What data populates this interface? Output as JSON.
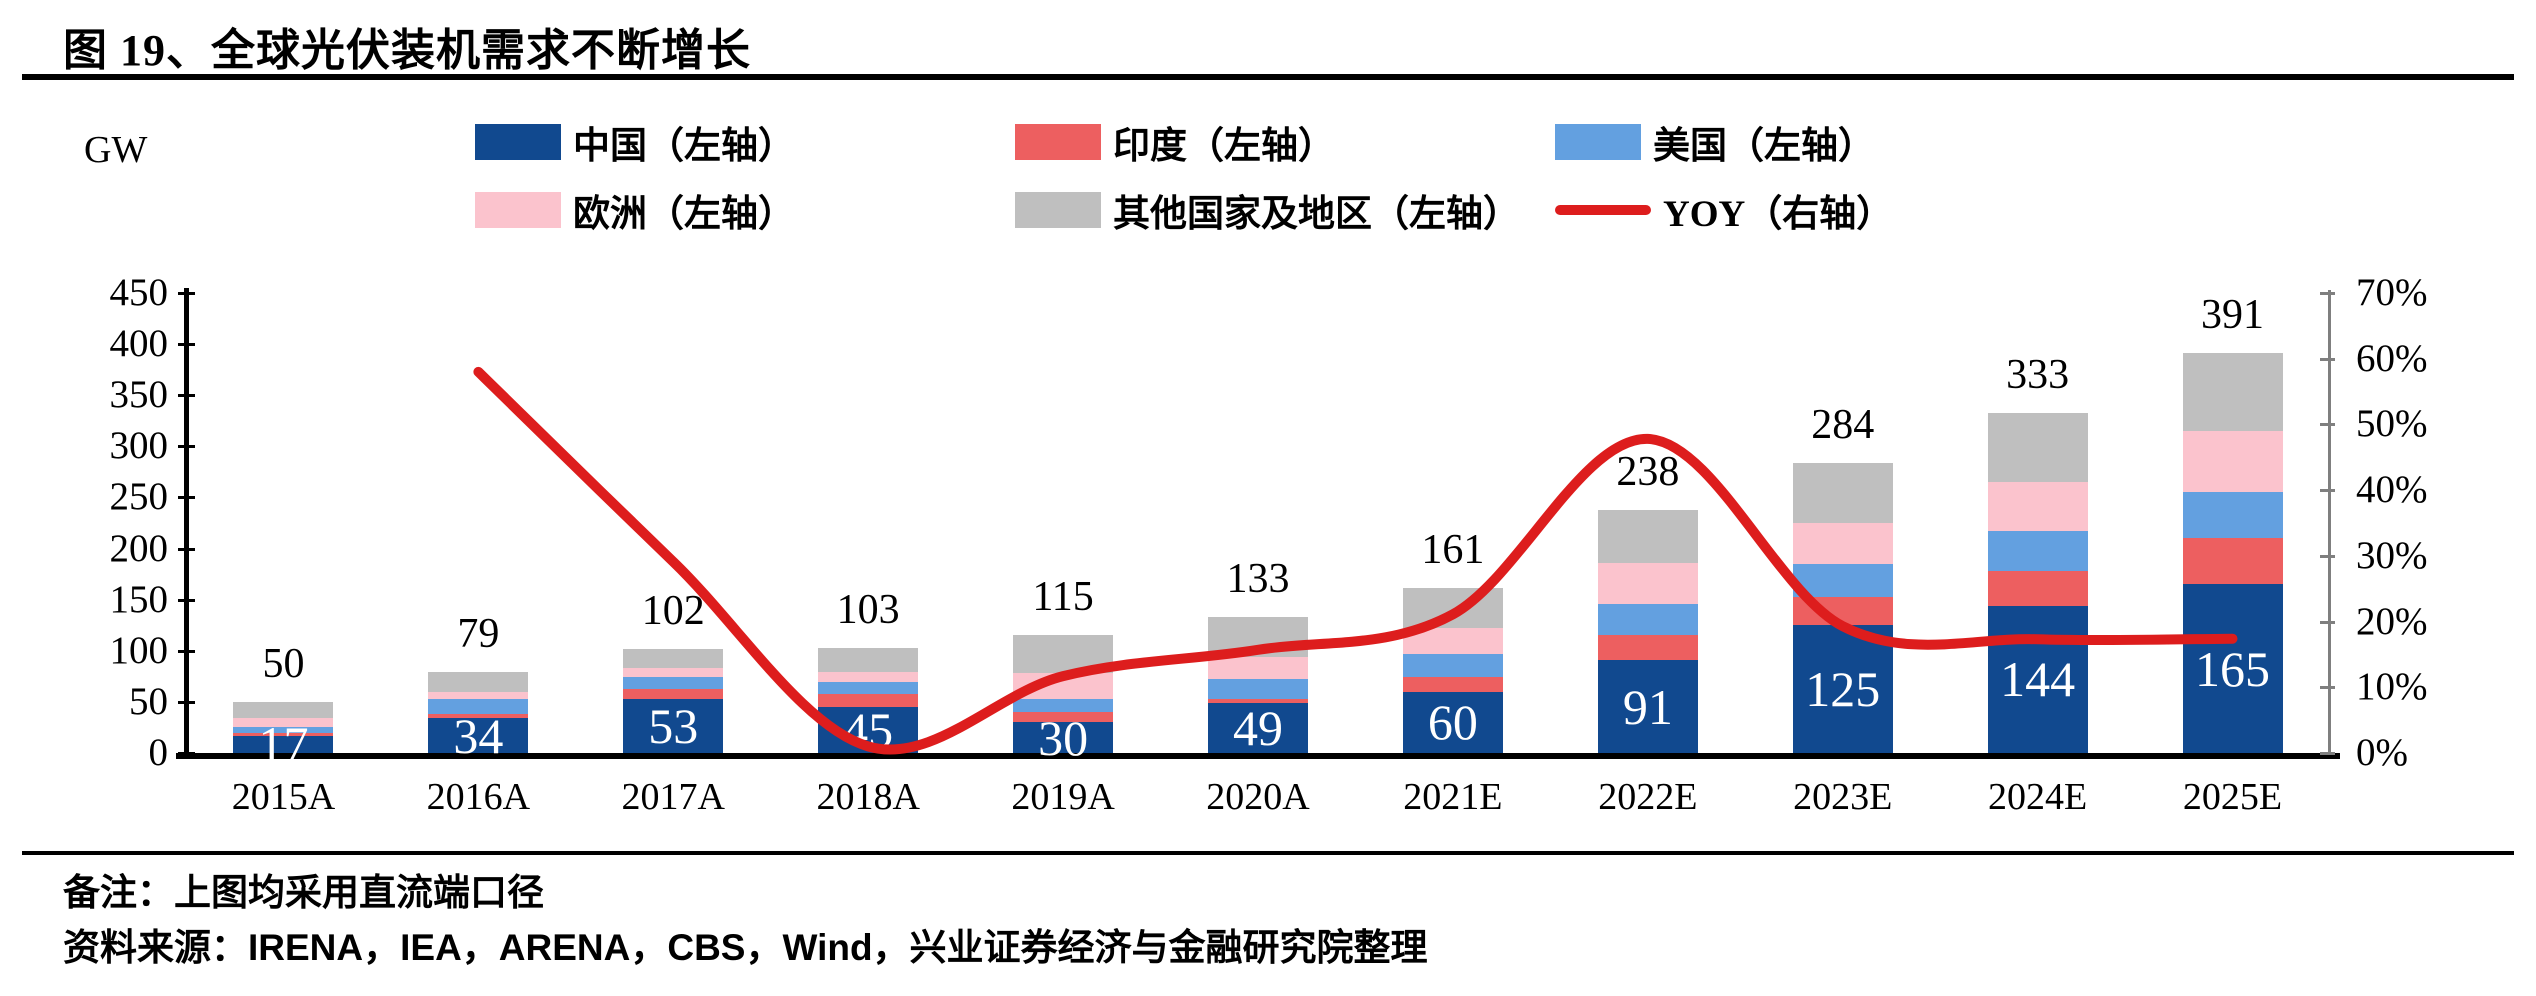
{
  "title": "图 19、全球光伏装机需求不断增长",
  "legend": {
    "rows": [
      [
        {
          "label": "中国（左轴）",
          "color": "#11498f",
          "swatch": "box"
        },
        {
          "label": "印度（左轴）",
          "color": "#ed5f60",
          "swatch": "box"
        },
        {
          "label": "美国（左轴）",
          "color": "#63a0e0",
          "swatch": "box"
        }
      ],
      [
        {
          "label": "欧洲（左轴）",
          "color": "#fbc3cd",
          "swatch": "box"
        },
        {
          "label": "其他国家及地区（左轴）",
          "color": "#bfbfbf",
          "swatch": "box"
        },
        {
          "label": "YOY（右轴）",
          "color": "#dd1d1d",
          "swatch": "line"
        }
      ]
    ]
  },
  "chart_data": {
    "type": "bar",
    "subtype": "stacked-bars-with-line",
    "categories": [
      "2015A",
      "2016A",
      "2017A",
      "2018A",
      "2019A",
      "2020A",
      "2021E",
      "2022E",
      "2023E",
      "2024E",
      "2025E"
    ],
    "series": [
      {
        "name": "中国（左轴）",
        "axis": "left",
        "color": "#11498f",
        "values": [
          17,
          34,
          53,
          45,
          30,
          49,
          60,
          91,
          125,
          144,
          165
        ]
      },
      {
        "name": "印度（左轴）",
        "axis": "left",
        "color": "#ed5f60",
        "values": [
          3,
          4,
          10,
          13,
          10,
          4,
          14,
          24,
          28,
          34,
          45
        ]
      },
      {
        "name": "美国（左轴）",
        "axis": "left",
        "color": "#63a0e0",
        "values": [
          5,
          15,
          11,
          11,
          13,
          19,
          23,
          31,
          32,
          39,
          45
        ]
      },
      {
        "name": "欧洲（左轴）",
        "axis": "left",
        "color": "#fbc3cd",
        "values": [
          9,
          7,
          9,
          10,
          25,
          22,
          25,
          40,
          40,
          48,
          60
        ]
      },
      {
        "name": "其他国家及地区（左轴）",
        "axis": "left",
        "color": "#bfbfbf",
        "values": [
          16,
          19,
          19,
          24,
          37,
          39,
          39,
          52,
          59,
          68,
          76
        ]
      }
    ],
    "bar_totals": [
      50,
      79,
      102,
      103,
      115,
      133,
      161,
      238,
      284,
      333,
      391
    ],
    "bar_inner_labels": [
      17,
      34,
      53,
      45,
      30,
      49,
      60,
      91,
      125,
      144,
      165
    ],
    "line_series": {
      "name": "YOY（右轴）",
      "axis": "right",
      "color": "#dd1d1d",
      "values_pct": [
        null,
        58.0,
        29.1,
        1.0,
        11.7,
        15.7,
        21.1,
        47.8,
        19.3,
        17.3,
        17.4
      ]
    },
    "y_left": {
      "label": "GW",
      "min": 0,
      "max": 450,
      "step": 50
    },
    "y_right": {
      "min": 0,
      "max": 70,
      "step": 10,
      "suffix": "%"
    },
    "grid": "off",
    "legend_position": "top"
  },
  "notes": {
    "remark": "备注：上图均采用直流端口径",
    "source": "资料来源：IRENA，IEA，ARENA，CBS，Wind，兴业证券经济与金融研究院整理"
  }
}
